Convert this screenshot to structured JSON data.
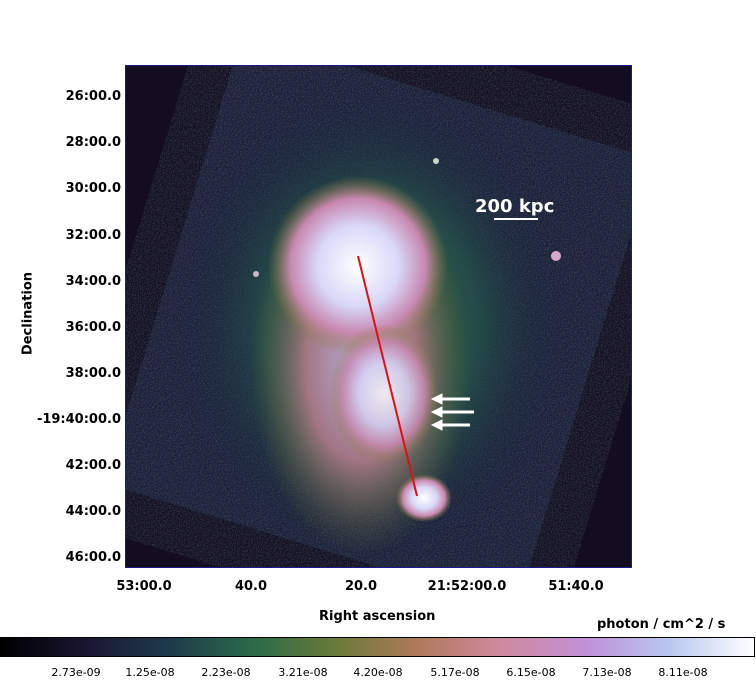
{
  "axes": {
    "xlabel": "Right ascension",
    "ylabel": "Declination",
    "x_ticks": [
      "53:00.0",
      "40.0",
      "20.0",
      "21:52:00.0",
      "51:40.0"
    ],
    "y_ticks": [
      "26:00.0",
      "28:00.0",
      "30:00.0",
      "32:00.0",
      "34:00.0",
      "36:00.0",
      "38:00.0",
      "-19:40:00.0",
      "42:00.0",
      "44:00.0",
      "46:00.0"
    ]
  },
  "image": {
    "scale_bar_label": "200 kpc",
    "background_color": "#140d22",
    "line_color": "#e01010",
    "arrow_color": "#ffffff",
    "arrow_count": 3
  },
  "colorbar": {
    "unit": "photon / cm^2 / s",
    "ticks": [
      "2.73e-09",
      "1.25e-08",
      "2.23e-08",
      "3.21e-08",
      "4.20e-08",
      "5.17e-08",
      "6.15e-08",
      "7.13e-08",
      "8.11e-08"
    ],
    "colormap": [
      "#000000",
      "#1a1530",
      "#1e3a4a",
      "#2a6a4a",
      "#6a7a38",
      "#b07a5a",
      "#d08aa0",
      "#c090d8",
      "#b8c8f0",
      "#ffffff"
    ]
  }
}
